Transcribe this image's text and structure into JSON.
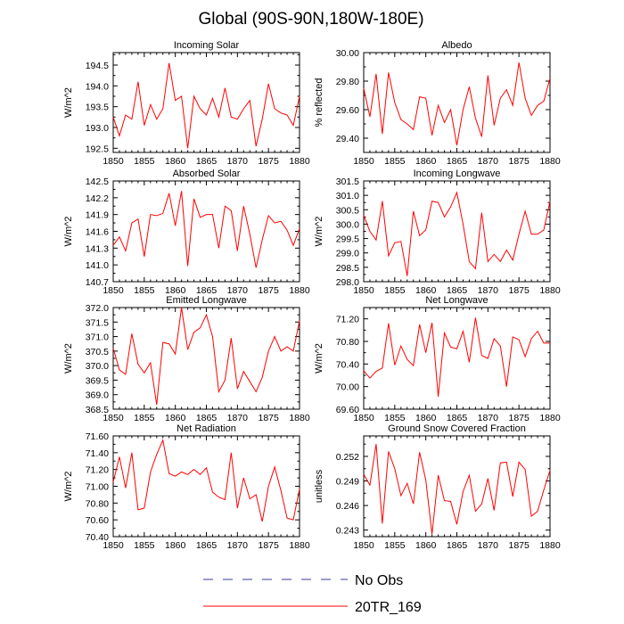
{
  "figure": {
    "title": "Global (90S-90N,180W-180E)",
    "legend": {
      "entries": [
        {
          "label": "No Obs",
          "color": "#3a3aa0",
          "style": "dashed"
        },
        {
          "label": "20TR_169",
          "color": "#ff0000",
          "style": "solid"
        }
      ]
    }
  },
  "chart_data": [
    {
      "type": "line",
      "title": "Incoming Solar",
      "ylabel": "W/m^2",
      "xlabel": "",
      "xlim": [
        1850,
        1880
      ],
      "ylim": [
        192.4,
        194.8
      ],
      "xticks": [
        "1850",
        "1855",
        "1860",
        "1865",
        "1870",
        "1875",
        "1880"
      ],
      "yticks": [
        "192.5",
        "193.0",
        "193.5",
        "194.0",
        "194.5"
      ],
      "series": [
        {
          "name": "20TR_169",
          "color": "#ff0000",
          "x": [
            1850,
            1851,
            1852,
            1853,
            1854,
            1855,
            1856,
            1857,
            1858,
            1859,
            1860,
            1861,
            1862,
            1863,
            1864,
            1865,
            1866,
            1867,
            1868,
            1869,
            1870,
            1871,
            1872,
            1873,
            1874,
            1875,
            1876,
            1877,
            1878,
            1879,
            1880
          ],
          "values": [
            193.25,
            192.8,
            193.3,
            193.2,
            194.1,
            193.05,
            193.55,
            193.2,
            193.45,
            194.55,
            193.65,
            193.75,
            192.5,
            193.75,
            193.45,
            193.3,
            193.7,
            193.25,
            193.95,
            193.25,
            193.2,
            193.45,
            193.65,
            192.55,
            193.2,
            194.05,
            193.45,
            193.35,
            193.3,
            193.05,
            193.75
          ]
        }
      ]
    },
    {
      "type": "line",
      "title": "Albedo",
      "ylabel": "% reflected",
      "xlabel": "",
      "xlim": [
        1850,
        1880
      ],
      "ylim": [
        29.3,
        30.0
      ],
      "xticks": [
        "1850",
        "1855",
        "1860",
        "1865",
        "1870",
        "1875",
        "1880"
      ],
      "yticks": [
        "29.40",
        "29.60",
        "29.80",
        "30.00"
      ],
      "series": [
        {
          "name": "20TR_169",
          "color": "#ff0000",
          "x": [
            1850,
            1851,
            1852,
            1853,
            1854,
            1855,
            1856,
            1857,
            1858,
            1859,
            1860,
            1861,
            1862,
            1863,
            1864,
            1865,
            1866,
            1867,
            1868,
            1869,
            1870,
            1871,
            1872,
            1873,
            1874,
            1875,
            1876,
            1877,
            1878,
            1879,
            1880
          ],
          "values": [
            29.75,
            29.55,
            29.85,
            29.43,
            29.86,
            29.65,
            29.53,
            29.5,
            29.46,
            29.69,
            29.68,
            29.42,
            29.63,
            29.51,
            29.6,
            29.35,
            29.6,
            29.76,
            29.54,
            29.41,
            29.84,
            29.49,
            29.68,
            29.74,
            29.63,
            29.93,
            29.68,
            29.56,
            29.63,
            29.66,
            29.82
          ]
        }
      ]
    },
    {
      "type": "line",
      "title": "Absorbed Solar",
      "ylabel": "W/m^2",
      "xlabel": "",
      "xlim": [
        1850,
        1880
      ],
      "ylim": [
        140.7,
        142.5
      ],
      "xticks": [
        "1850",
        "1855",
        "1860",
        "1865",
        "1870",
        "1875",
        "1880"
      ],
      "yticks": [
        "140.7",
        "141.0",
        "141.3",
        "141.6",
        "141.9",
        "142.2",
        "142.5"
      ],
      "series": [
        {
          "name": "20TR_169",
          "color": "#ff0000",
          "x": [
            1850,
            1851,
            1852,
            1853,
            1854,
            1855,
            1856,
            1857,
            1858,
            1859,
            1860,
            1861,
            1862,
            1863,
            1864,
            1865,
            1866,
            1867,
            1868,
            1869,
            1870,
            1871,
            1872,
            1873,
            1874,
            1875,
            1876,
            1877,
            1878,
            1879,
            1880
          ],
          "values": [
            141.35,
            141.5,
            141.25,
            141.75,
            141.82,
            141.15,
            141.9,
            141.88,
            141.92,
            142.28,
            141.7,
            142.32,
            140.98,
            142.18,
            141.85,
            141.9,
            141.9,
            141.3,
            142.05,
            141.97,
            141.25,
            142.05,
            141.55,
            140.95,
            141.45,
            141.88,
            141.75,
            141.78,
            141.62,
            141.35,
            141.65
          ]
        }
      ]
    },
    {
      "type": "line",
      "title": "Incoming Longwave",
      "ylabel": "W/m^2",
      "xlabel": "",
      "xlim": [
        1850,
        1880
      ],
      "ylim": [
        298.0,
        301.5
      ],
      "xticks": [
        "1850",
        "1855",
        "1860",
        "1865",
        "1870",
        "1875",
        "1880"
      ],
      "yticks": [
        "298.0",
        "298.5",
        "299.0",
        "299.5",
        "300.0",
        "300.5",
        "301.0",
        "301.5"
      ],
      "series": [
        {
          "name": "20TR_169",
          "color": "#ff0000",
          "x": [
            1850,
            1851,
            1852,
            1853,
            1854,
            1855,
            1856,
            1857,
            1858,
            1859,
            1860,
            1861,
            1862,
            1863,
            1864,
            1865,
            1866,
            1867,
            1868,
            1869,
            1870,
            1871,
            1872,
            1873,
            1874,
            1875,
            1876,
            1877,
            1878,
            1879,
            1880
          ],
          "values": [
            300.3,
            299.75,
            299.45,
            300.8,
            298.9,
            299.35,
            299.4,
            298.2,
            300.45,
            299.6,
            299.8,
            300.8,
            300.75,
            300.25,
            300.6,
            301.1,
            300.0,
            298.7,
            298.45,
            300.4,
            298.7,
            298.95,
            298.7,
            299.1,
            298.75,
            299.65,
            300.45,
            299.65,
            299.65,
            299.8,
            300.8
          ]
        }
      ]
    },
    {
      "type": "line",
      "title": "Emitted Longwave",
      "ylabel": "W/m^2",
      "xlabel": "",
      "xlim": [
        1850,
        1880
      ],
      "ylim": [
        368.5,
        372.0
      ],
      "xticks": [
        "1850",
        "1855",
        "1860",
        "1865",
        "1870",
        "1875",
        "1880"
      ],
      "yticks": [
        "368.5",
        "369.0",
        "369.5",
        "370.0",
        "370.5",
        "371.0",
        "371.5",
        "372.0"
      ],
      "series": [
        {
          "name": "20TR_169",
          "color": "#ff0000",
          "x": [
            1850,
            1851,
            1852,
            1853,
            1854,
            1855,
            1856,
            1857,
            1858,
            1859,
            1860,
            1861,
            1862,
            1863,
            1864,
            1865,
            1866,
            1867,
            1868,
            1869,
            1870,
            1871,
            1872,
            1873,
            1874,
            1875,
            1876,
            1877,
            1878,
            1879,
            1880
          ],
          "values": [
            370.6,
            369.85,
            369.7,
            371.1,
            370.05,
            369.75,
            370.1,
            368.65,
            370.8,
            370.75,
            370.4,
            372.0,
            370.55,
            371.15,
            371.3,
            371.75,
            371.0,
            369.1,
            369.5,
            370.95,
            369.2,
            369.8,
            369.45,
            369.1,
            369.6,
            370.5,
            371.0,
            370.5,
            370.65,
            370.5,
            371.55
          ]
        }
      ]
    },
    {
      "type": "line",
      "title": "Net Longwave",
      "ylabel": "W/m^2",
      "xlabel": "",
      "xlim": [
        1850,
        1880
      ],
      "ylim": [
        69.6,
        71.4
      ],
      "xticks": [
        "1850",
        "1855",
        "1860",
        "1865",
        "1870",
        "1875",
        "1880"
      ],
      "yticks": [
        "69.60",
        "70.00",
        "70.40",
        "70.80",
        "71.20"
      ],
      "series": [
        {
          "name": "20TR_169",
          "color": "#ff0000",
          "x": [
            1850,
            1851,
            1852,
            1853,
            1854,
            1855,
            1856,
            1857,
            1858,
            1859,
            1860,
            1861,
            1862,
            1863,
            1864,
            1865,
            1866,
            1867,
            1868,
            1869,
            1870,
            1871,
            1872,
            1873,
            1874,
            1875,
            1876,
            1877,
            1878,
            1879,
            1880
          ],
          "values": [
            70.28,
            70.15,
            70.27,
            70.33,
            71.12,
            70.38,
            70.72,
            70.48,
            70.37,
            71.1,
            70.6,
            71.13,
            69.82,
            70.95,
            70.7,
            70.67,
            70.98,
            70.43,
            71.22,
            70.55,
            70.5,
            70.85,
            70.72,
            70.0,
            70.88,
            70.83,
            70.53,
            70.85,
            70.98,
            70.77,
            70.77
          ]
        }
      ]
    },
    {
      "type": "line",
      "title": "Net Radiation",
      "ylabel": "W/m^2",
      "xlabel": "",
      "xlim": [
        1850,
        1880
      ],
      "ylim": [
        70.4,
        71.6
      ],
      "xticks": [
        "1850",
        "1855",
        "1860",
        "1865",
        "1870",
        "1875",
        "1880"
      ],
      "yticks": [
        "70.40",
        "70.60",
        "70.80",
        "71.00",
        "71.20",
        "71.40",
        "71.60"
      ],
      "series": [
        {
          "name": "20TR_169",
          "color": "#ff0000",
          "x": [
            1850,
            1851,
            1852,
            1853,
            1854,
            1855,
            1856,
            1857,
            1858,
            1859,
            1860,
            1861,
            1862,
            1863,
            1864,
            1865,
            1866,
            1867,
            1868,
            1869,
            1870,
            1871,
            1872,
            1873,
            1874,
            1875,
            1876,
            1877,
            1878,
            1879,
            1880
          ],
          "values": [
            71.05,
            71.35,
            70.98,
            71.4,
            70.72,
            70.74,
            71.17,
            71.38,
            71.55,
            71.15,
            71.12,
            71.17,
            71.14,
            71.2,
            71.14,
            71.22,
            70.93,
            70.87,
            70.84,
            71.4,
            70.74,
            71.1,
            70.85,
            70.9,
            70.58,
            71.0,
            71.23,
            70.95,
            70.62,
            70.6,
            70.97
          ]
        }
      ]
    },
    {
      "type": "line",
      "title": "Ground Snow Covered Fraction",
      "ylabel": "unitless",
      "xlabel": "",
      "xlim": [
        1850,
        1880
      ],
      "ylim": [
        0.2422,
        0.2545
      ],
      "xticks": [
        "1850",
        "1855",
        "1860",
        "1865",
        "1870",
        "1875",
        "1880"
      ],
      "yticks": [
        "0.243",
        "0.246",
        "0.249",
        "0.252"
      ],
      "series": [
        {
          "name": "20TR_169",
          "color": "#ff0000",
          "x": [
            1850,
            1851,
            1852,
            1853,
            1854,
            1855,
            1856,
            1857,
            1858,
            1859,
            1860,
            1861,
            1862,
            1863,
            1864,
            1865,
            1866,
            1867,
            1868,
            1869,
            1870,
            1871,
            1872,
            1873,
            1874,
            1875,
            1876,
            1877,
            1878,
            1879,
            1880
          ],
          "values": [
            0.2498,
            0.2485,
            0.2535,
            0.2438,
            0.2526,
            0.2505,
            0.2472,
            0.2487,
            0.2462,
            0.2525,
            0.2491,
            0.2425,
            0.2497,
            0.2466,
            0.2465,
            0.2437,
            0.2477,
            0.2497,
            0.2453,
            0.2462,
            0.2493,
            0.2454,
            0.2512,
            0.2513,
            0.2471,
            0.2513,
            0.2504,
            0.2447,
            0.2453,
            0.2479,
            0.2503
          ]
        }
      ]
    }
  ]
}
